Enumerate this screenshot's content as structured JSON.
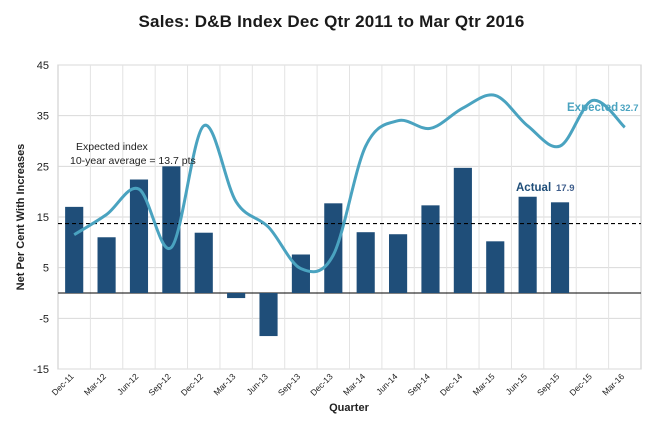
{
  "chart_data": {
    "type": "bar",
    "title": "Sales: D&B Index  Dec Qtr 2011 to Mar Qtr 2016",
    "xlabel": "Quarter",
    "ylabel": "Net Per Cent With Increases",
    "ylim": [
      -15,
      45
    ],
    "yticks": [
      -15,
      -5,
      5,
      15,
      25,
      35,
      45
    ],
    "grid": true,
    "categories": [
      "Dec-11",
      "Mar-12",
      "Jun-12",
      "Sep-12",
      "Dec-12",
      "Mar-13",
      "Jun-13",
      "Sep-13",
      "Dec-13",
      "Mar-14",
      "Jun-14",
      "Sep-14",
      "Dec-14",
      "Mar-15",
      "Jun-15",
      "Sep-15",
      "Dec-15",
      "Mar-16"
    ],
    "series": [
      {
        "name": "Actual",
        "kind": "bar",
        "color": "#1f4e79",
        "values": [
          17.0,
          11.0,
          22.4,
          25.0,
          11.9,
          -1.0,
          -8.5,
          7.6,
          17.7,
          12.0,
          11.6,
          17.3,
          24.7,
          10.2,
          19.0,
          17.9,
          null,
          null
        ]
      },
      {
        "name": "Expected",
        "kind": "line",
        "color": "#4aa3c0",
        "values": [
          11.5,
          15.5,
          20.5,
          9.0,
          33.0,
          18.0,
          13.0,
          4.8,
          7.5,
          29.0,
          34.0,
          32.5,
          36.5,
          39.0,
          33.0,
          29.0,
          38.0,
          32.7
        ]
      }
    ],
    "reference_line": {
      "value": 13.7,
      "style": "dashed"
    },
    "annotations": {
      "expected_index_line1": "Expected index",
      "expected_index_line2": "10-year average = 13.7 pts",
      "actual_label": "Actual",
      "actual_value": "17.9",
      "expected_label": "Expected",
      "expected_value": "32.7"
    }
  }
}
